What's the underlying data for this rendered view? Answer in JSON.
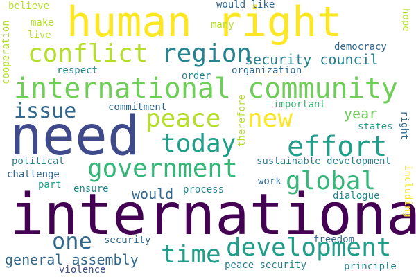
{
  "palette": {
    "dark_purple": "#440154",
    "indigo": "#3e4a89",
    "blue": "#31688e",
    "teal": "#26828e",
    "green_teal": "#1f9e89",
    "green": "#35b779",
    "light_green": "#6ece58",
    "yellow_green": "#b5de2b",
    "yellow": "#fde725"
  },
  "words": [
    {
      "text": "human right",
      "color": "yellow"
    },
    {
      "text": "need",
      "color": "indigo"
    },
    {
      "text": "international",
      "color": "dark_purple"
    },
    {
      "text": "international community",
      "color": "light_green"
    },
    {
      "text": "conflict",
      "color": "yellow_green"
    },
    {
      "text": "region",
      "color": "teal"
    },
    {
      "text": "government",
      "color": "green"
    },
    {
      "text": "development",
      "color": "green_teal"
    },
    {
      "text": "effort",
      "color": "green_teal"
    },
    {
      "text": "peace",
      "color": "yellow_green"
    },
    {
      "text": "today",
      "color": "green_teal"
    },
    {
      "text": "global",
      "color": "green"
    },
    {
      "text": "new",
      "color": "yellow"
    },
    {
      "text": "time",
      "color": "green_teal"
    },
    {
      "text": "one",
      "color": "blue"
    },
    {
      "text": "issue",
      "color": "blue"
    },
    {
      "text": "security council",
      "color": "teal"
    },
    {
      "text": "general assembly",
      "color": "blue"
    },
    {
      "text": "would",
      "color": "blue"
    },
    {
      "text": "year",
      "color": "light_green"
    },
    {
      "text": "commitment",
      "color": "blue"
    },
    {
      "text": "organization",
      "color": "blue"
    },
    {
      "text": "peace security",
      "color": "teal"
    },
    {
      "text": "political",
      "color": "teal"
    },
    {
      "text": "challenge",
      "color": "blue"
    },
    {
      "text": "sustainable development",
      "color": "teal"
    },
    {
      "text": "would like",
      "color": "blue"
    },
    {
      "text": "democracy",
      "color": "blue"
    },
    {
      "text": "work",
      "color": "blue"
    },
    {
      "text": "dialogue",
      "color": "teal"
    },
    {
      "text": "freedom",
      "color": "blue"
    },
    {
      "text": "principle",
      "color": "teal"
    },
    {
      "text": "security",
      "color": "blue"
    },
    {
      "text": "violence",
      "color": "indigo"
    },
    {
      "text": "process",
      "color": "teal"
    },
    {
      "text": "ensure",
      "color": "teal"
    },
    {
      "text": "important",
      "color": "green"
    },
    {
      "text": "states",
      "color": "green_teal"
    },
    {
      "text": "order",
      "color": "teal"
    },
    {
      "text": "respect",
      "color": "teal"
    },
    {
      "text": "believe",
      "color": "yellow_green"
    },
    {
      "text": "make",
      "color": "yellow_green"
    },
    {
      "text": "live",
      "color": "yellow_green"
    },
    {
      "text": "many",
      "color": "yellow_green"
    },
    {
      "text": "part",
      "color": "green_teal"
    },
    {
      "text": "right",
      "color": "blue"
    },
    {
      "text": "hope",
      "color": "yellow_green"
    },
    {
      "text": "including",
      "color": "yellow"
    },
    {
      "text": "therefore",
      "color": "yellow_green"
    },
    {
      "text": "cooperation",
      "color": "yellow_green"
    }
  ]
}
